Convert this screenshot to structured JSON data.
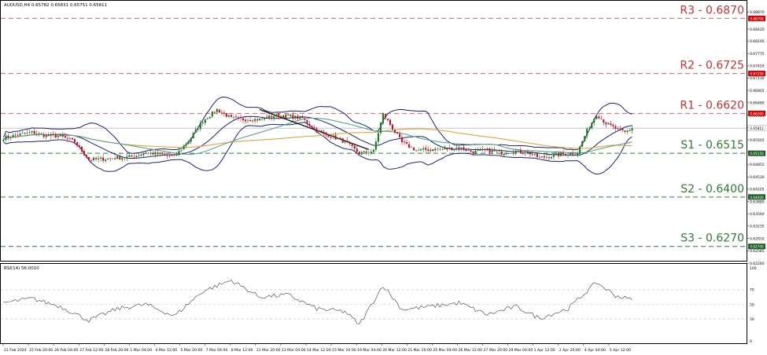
{
  "symbol_header": "AUDUSD,H4  0.65782 0.65831 0.65751 0.65811",
  "rsi_header": "RSI(14) 56.0010",
  "colors": {
    "bull": "#1e7a1e",
    "bear": "#c0122a",
    "bollinger": "#1a237e",
    "ma_long": "#e8a23a",
    "ma_short": "#5aa58a",
    "trendline": "#111111",
    "resistance": "#e06060",
    "support": "#2e7d32",
    "price_line": "#bdbdbd",
    "rsi_line": "#555555",
    "resistance_text": "#d32f2f",
    "support_text": "#2e7d32"
  },
  "price_axis": {
    "labels": [
      "0.69065",
      "0.68870",
      "0.68420",
      "0.68100",
      "0.67775",
      "0.67450",
      "0.67130",
      "0.66805",
      "0.66480",
      "0.66155",
      "0.65830",
      "0.65505",
      "0.65180",
      "0.64855",
      "0.64530",
      "0.64205",
      "0.63880",
      "0.63560",
      "0.63235",
      "0.62910",
      "0.62585",
      "0.62260"
    ],
    "current_price": "0.65811"
  },
  "rsi_axis": {
    "labels": [
      "100",
      "70",
      "50",
      "30",
      "0"
    ]
  },
  "levels": [
    {
      "name": "R3",
      "label": "R3 - 0.6870",
      "tag": "0.68700",
      "value": 0.687,
      "kind": "resistance"
    },
    {
      "name": "R2",
      "label": "R2 - 0.6725",
      "tag": "0.67250",
      "value": 0.6725,
      "kind": "resistance"
    },
    {
      "name": "R1",
      "label": "R1 - 0.6620",
      "tag": "0.66200",
      "value": 0.662,
      "kind": "resistance"
    },
    {
      "name": "S1",
      "label": "S1 - 0.6515",
      "tag": "0.65150",
      "value": 0.6515,
      "kind": "support"
    },
    {
      "name": "S2",
      "label": "S2 - 0.6400",
      "tag": "0.64000",
      "value": 0.64,
      "kind": "support"
    },
    {
      "name": "S3",
      "label": "S3 - 0.6270",
      "tag": "0.62700",
      "value": 0.627,
      "kind": "support"
    }
  ],
  "x_axis": {
    "labels": [
      "21 Feb 2024",
      "22 Feb 20:00",
      "26 Feb 04:00",
      "27 Feb 12:00",
      "28 Feb 20:00",
      "1 Mar 04:00",
      "4 Mar 12:00",
      "5 Mar 20:00",
      "7 Mar 04:00",
      "8 Mar 12:00",
      "11 Mar 20:00",
      "13 Mar 04:00",
      "14 Mar 12:00",
      "15 Mar 20:00",
      "19 Mar 04:00",
      "20 Mar 12:00",
      "21 Mar 20:00",
      "25 Mar 04:00",
      "26 Mar 12:00",
      "27 Mar 20:00",
      "29 Mar 04:00",
      "1 Apr 12:00",
      "2 Apr 20:00",
      "4 Apr 04:00",
      "5 Apr 12:00"
    ]
  },
  "chart_data": {
    "type": "candlestick",
    "instrument": "AUDUSD",
    "timeframe": "H4",
    "ylim": [
      0.6226,
      0.6906
    ],
    "overlays": [
      "Bollinger Bands",
      "Moving Average",
      "Moving Average",
      "Downtrend line"
    ],
    "anchors": [
      {
        "bar": 0,
        "close": 0.6556
      },
      {
        "bar": 6,
        "close": 0.6563
      },
      {
        "bar": 12,
        "close": 0.657
      },
      {
        "bar": 18,
        "close": 0.6561
      },
      {
        "bar": 24,
        "close": 0.656
      },
      {
        "bar": 30,
        "close": 0.6545
      },
      {
        "bar": 36,
        "close": 0.6498
      },
      {
        "bar": 42,
        "close": 0.65
      },
      {
        "bar": 48,
        "close": 0.6503
      },
      {
        "bar": 54,
        "close": 0.6506
      },
      {
        "bar": 60,
        "close": 0.6516
      },
      {
        "bar": 66,
        "close": 0.6513
      },
      {
        "bar": 72,
        "close": 0.6505
      },
      {
        "bar": 78,
        "close": 0.6548
      },
      {
        "bar": 84,
        "close": 0.66
      },
      {
        "bar": 90,
        "close": 0.663
      },
      {
        "bar": 96,
        "close": 0.6607
      },
      {
        "bar": 102,
        "close": 0.6604
      },
      {
        "bar": 108,
        "close": 0.6604
      },
      {
        "bar": 114,
        "close": 0.6614
      },
      {
        "bar": 120,
        "close": 0.6613
      },
      {
        "bar": 126,
        "close": 0.6607
      },
      {
        "bar": 132,
        "close": 0.6575
      },
      {
        "bar": 138,
        "close": 0.656
      },
      {
        "bar": 144,
        "close": 0.6545
      },
      {
        "bar": 150,
        "close": 0.6515
      },
      {
        "bar": 156,
        "close": 0.6521
      },
      {
        "bar": 160,
        "close": 0.6618
      },
      {
        "bar": 162,
        "close": 0.66
      },
      {
        "bar": 168,
        "close": 0.6543
      },
      {
        "bar": 174,
        "close": 0.6523
      },
      {
        "bar": 180,
        "close": 0.6525
      },
      {
        "bar": 186,
        "close": 0.6526
      },
      {
        "bar": 192,
        "close": 0.653
      },
      {
        "bar": 198,
        "close": 0.6518
      },
      {
        "bar": 204,
        "close": 0.6523
      },
      {
        "bar": 210,
        "close": 0.6516
      },
      {
        "bar": 216,
        "close": 0.6521
      },
      {
        "bar": 222,
        "close": 0.6515
      },
      {
        "bar": 226,
        "close": 0.6503
      },
      {
        "bar": 230,
        "close": 0.6507
      },
      {
        "bar": 236,
        "close": 0.6513
      },
      {
        "bar": 242,
        "close": 0.6517
      },
      {
        "bar": 246,
        "close": 0.6575
      },
      {
        "bar": 250,
        "close": 0.6618
      },
      {
        "bar": 254,
        "close": 0.6594
      },
      {
        "bar": 258,
        "close": 0.658
      },
      {
        "bar": 262,
        "close": 0.657
      },
      {
        "bar": 265,
        "close": 0.6581
      }
    ],
    "bar_count": 266,
    "rsi": {
      "period": 14,
      "last": 56.001,
      "ylim": [
        0,
        100
      ],
      "levels": [
        70,
        50,
        30
      ],
      "anchors": [
        {
          "bar": 0,
          "value": 52
        },
        {
          "bar": 12,
          "value": 58
        },
        {
          "bar": 24,
          "value": 47
        },
        {
          "bar": 36,
          "value": 28
        },
        {
          "bar": 48,
          "value": 44
        },
        {
          "bar": 60,
          "value": 50
        },
        {
          "bar": 72,
          "value": 34
        },
        {
          "bar": 84,
          "value": 68
        },
        {
          "bar": 96,
          "value": 83
        },
        {
          "bar": 108,
          "value": 60
        },
        {
          "bar": 120,
          "value": 63
        },
        {
          "bar": 132,
          "value": 44
        },
        {
          "bar": 144,
          "value": 40
        },
        {
          "bar": 150,
          "value": 22
        },
        {
          "bar": 160,
          "value": 76
        },
        {
          "bar": 168,
          "value": 43
        },
        {
          "bar": 180,
          "value": 47
        },
        {
          "bar": 192,
          "value": 52
        },
        {
          "bar": 204,
          "value": 36
        },
        {
          "bar": 216,
          "value": 47
        },
        {
          "bar": 226,
          "value": 31
        },
        {
          "bar": 238,
          "value": 44
        },
        {
          "bar": 250,
          "value": 80
        },
        {
          "bar": 258,
          "value": 62
        },
        {
          "bar": 265,
          "value": 56
        }
      ]
    }
  }
}
